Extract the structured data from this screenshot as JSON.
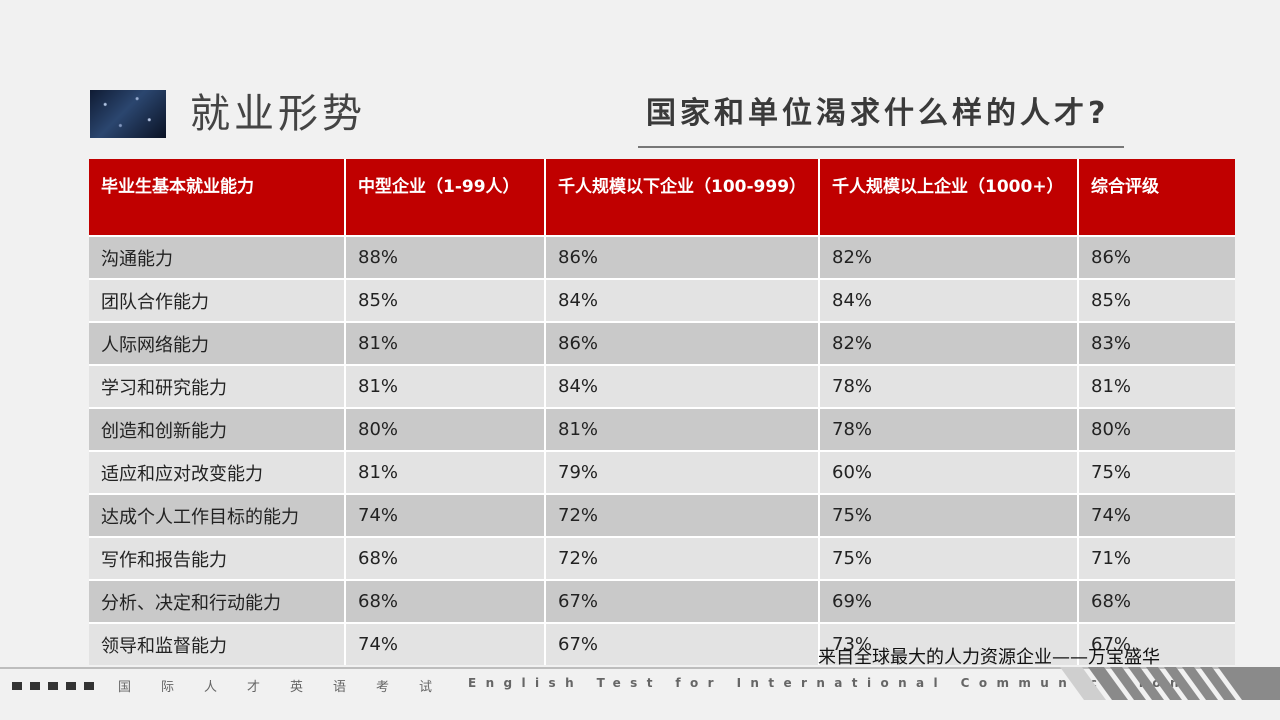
{
  "header": {
    "title": "就业形势",
    "subtitle": "国家和单位渴求什么样的人才?"
  },
  "table": {
    "headers": [
      "毕业生基本就业能力",
      "中型企业（1-99人）",
      "千人规模以下企业（100-999）",
      "千人规模以上企业（1000+）",
      "综合评级"
    ],
    "rows": [
      [
        "沟通能力",
        "88%",
        "86%",
        "82%",
        "86%"
      ],
      [
        "团队合作能力",
        "85%",
        "84%",
        "84%",
        "85%"
      ],
      [
        "人际网络能力",
        "81%",
        "86%",
        "82%",
        "83%"
      ],
      [
        "学习和研究能力",
        "81%",
        "84%",
        "78%",
        "81%"
      ],
      [
        "创造和创新能力",
        "80%",
        "81%",
        "78%",
        "80%"
      ],
      [
        "适应和应对改变能力",
        "81%",
        "79%",
        "60%",
        "75%"
      ],
      [
        "达成个人工作目标的能力",
        "74%",
        "72%",
        "75%",
        "74%"
      ],
      [
        "写作和报告能力",
        "68%",
        "72%",
        "75%",
        "71%"
      ],
      [
        "分析、决定和行动能力",
        "68%",
        "67%",
        "69%",
        "68%"
      ],
      [
        "领导和监督能力",
        "74%",
        "67%",
        "73%",
        "67%"
      ]
    ]
  },
  "source_note": "来自全球最大的人力资源企业——万宝盛华",
  "footer": {
    "cn_text": "国际人才英语考试",
    "en_text": "English Test for International Communication"
  },
  "colors": {
    "header_red": "#c00000",
    "row_dark": "#c9c9c9",
    "row_light": "#e3e3e3"
  }
}
